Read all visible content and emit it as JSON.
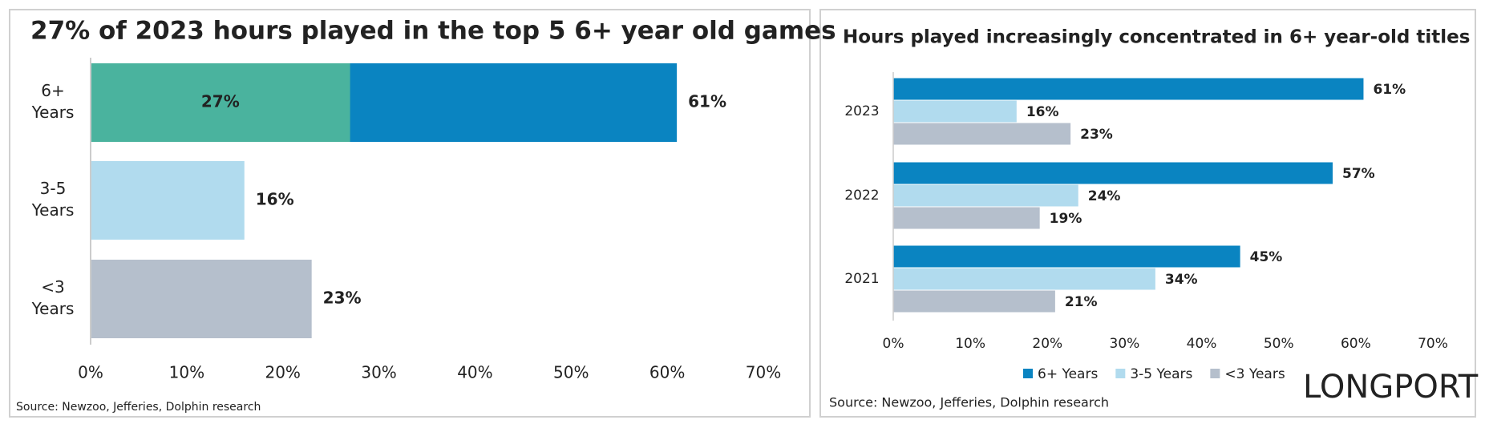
{
  "chart_data": [
    {
      "type": "hbar",
      "title": "27% of 2023 hours played in the top 5 6+ year old games",
      "categories": [
        [
          "6+",
          "Years"
        ],
        [
          "3-5",
          "Years"
        ],
        [
          "<3",
          "Years"
        ]
      ],
      "values": [
        61,
        16,
        23
      ],
      "value_labels": [
        "61%",
        "16%",
        "23%"
      ],
      "colors": [
        "#0a84c1",
        "#b1dbee",
        "#b5bfcc"
      ],
      "overlay": {
        "value": 27,
        "value_label": "27%",
        "color": "#4ab39e"
      },
      "xlim": [
        0,
        70
      ],
      "xticks": [
        {
          "value": 0,
          "label": "0%"
        },
        {
          "value": 10,
          "label": "10%"
        },
        {
          "value": 20,
          "label": "20%"
        },
        {
          "value": 30,
          "label": "30%"
        },
        {
          "value": 40,
          "label": "40%"
        },
        {
          "value": 50,
          "label": "50%"
        },
        {
          "value": 60,
          "label": "60%"
        },
        {
          "value": 70,
          "label": "70%"
        }
      ],
      "source": "Source: Newzoo, Jefferies, Dolphin research"
    },
    {
      "type": "grouped_hbar",
      "title": "Hours played increasingly concentrated in 6+ year-old titles",
      "categories": [
        "2023",
        "2022",
        "2021"
      ],
      "series": [
        {
          "name": "6+ Years",
          "color": "#0a84c1",
          "values": [
            61,
            57,
            45
          ],
          "value_labels": [
            "61%",
            "57%",
            "45%"
          ]
        },
        {
          "name": "3-5 Years",
          "color": "#b1dbee",
          "values": [
            16,
            24,
            34
          ],
          "value_labels": [
            "16%",
            "24%",
            "34%"
          ]
        },
        {
          "name": "<3 Years",
          "color": "#b5bfcc",
          "values": [
            23,
            19,
            21
          ],
          "value_labels": [
            "23%",
            "19%",
            "21%"
          ]
        }
      ],
      "xlim": [
        0,
        70
      ],
      "xticks": [
        {
          "value": 0,
          "label": "0%"
        },
        {
          "value": 10,
          "label": "10%"
        },
        {
          "value": 20,
          "label": "20%"
        },
        {
          "value": 30,
          "label": "30%"
        },
        {
          "value": 40,
          "label": "40%"
        },
        {
          "value": 50,
          "label": "50%"
        },
        {
          "value": 60,
          "label": "60%"
        },
        {
          "value": 70,
          "label": "70%"
        }
      ],
      "legend": "bottom",
      "source": "Source: Newzoo, Jefferies, Dolphin research",
      "watermark": "LONGPORT"
    }
  ]
}
